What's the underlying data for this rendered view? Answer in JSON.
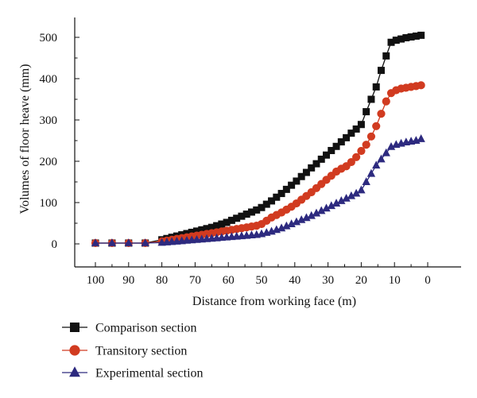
{
  "chart_data": {
    "type": "line",
    "title": "",
    "xlabel": "Distance from working face (m)",
    "ylabel": "Volumes of floor heave (mm)",
    "xlim": [
      100,
      0
    ],
    "ylim": [
      0,
      500
    ],
    "x_reversed": true,
    "xticks": [
      "100",
      "90",
      "80",
      "70",
      "60",
      "50",
      "40",
      "30",
      "20",
      "10",
      "0"
    ],
    "yticks": [
      "0",
      "100",
      "200",
      "300",
      "400",
      "500"
    ],
    "grid": false,
    "legend_position": "bottom",
    "series": [
      {
        "name": "Comparison section",
        "color": "#111111",
        "marker": "square",
        "x": [
          100,
          95,
          90,
          85,
          80,
          78.5,
          77,
          75.5,
          74,
          72.5,
          71,
          69.5,
          68,
          66.5,
          65,
          63.5,
          62,
          60.5,
          59,
          57.5,
          56,
          54.5,
          53,
          51.5,
          50,
          48.5,
          47,
          45.5,
          44,
          42.5,
          41,
          39.5,
          38,
          36.5,
          35,
          33.5,
          32,
          30.5,
          29,
          27.5,
          26,
          24.5,
          23,
          21.5,
          20,
          18.5,
          17,
          15.5,
          14,
          12.5,
          11,
          9.5,
          8,
          6.5,
          5,
          3.5,
          2
        ],
        "y": [
          2,
          2,
          2,
          2,
          10,
          13,
          16,
          19,
          22,
          25,
          28,
          31,
          34,
          37,
          40,
          44,
          48,
          52,
          57,
          62,
          67,
          72,
          77,
          82,
          88,
          96,
          104,
          113,
          122,
          132,
          142,
          152,
          163,
          173,
          184,
          194,
          205,
          215,
          226,
          236,
          247,
          257,
          268,
          278,
          289,
          320,
          350,
          380,
          420,
          455,
          488,
          493,
          496,
          499,
          501,
          503,
          505
        ]
      },
      {
        "name": "Transitory section",
        "color": "#d13b20",
        "marker": "circle",
        "x": [
          100,
          95,
          90,
          85,
          80,
          78.5,
          77,
          75.5,
          74,
          72.5,
          71,
          69.5,
          68,
          66.5,
          65,
          63.5,
          62,
          60.5,
          59,
          57.5,
          56,
          54.5,
          53,
          51.5,
          50,
          48.5,
          47,
          45.5,
          44,
          42.5,
          41,
          39.5,
          38,
          36.5,
          35,
          33.5,
          32,
          30.5,
          29,
          27.5,
          26,
          24.5,
          23,
          21.5,
          20,
          18.5,
          17,
          15.5,
          14,
          12.5,
          11,
          9.5,
          8,
          6.5,
          5,
          3.5,
          2
        ],
        "y": [
          2,
          2,
          2,
          2,
          6,
          8,
          10,
          12,
          14,
          16,
          18,
          20,
          22,
          24,
          26,
          28,
          30,
          32,
          34,
          36,
          38,
          40,
          42,
          44,
          48,
          56,
          64,
          70,
          76,
          83,
          90,
          98,
          107,
          116,
          125,
          135,
          145,
          155,
          165,
          175,
          182,
          188,
          198,
          210,
          225,
          240,
          260,
          285,
          315,
          345,
          365,
          372,
          376,
          378,
          380,
          382,
          384
        ]
      },
      {
        "name": "Experimental section",
        "color": "#2d2a7f",
        "marker": "triangle",
        "x": [
          100,
          95,
          90,
          85,
          80,
          78.5,
          77,
          75.5,
          74,
          72.5,
          71,
          69.5,
          68,
          66.5,
          65,
          63.5,
          62,
          60.5,
          59,
          57.5,
          56,
          54.5,
          53,
          51.5,
          50,
          48.5,
          47,
          45.5,
          44,
          42.5,
          41,
          39.5,
          38,
          36.5,
          35,
          33.5,
          32,
          30.5,
          29,
          27.5,
          26,
          24.5,
          23,
          21.5,
          20,
          18.5,
          17,
          15.5,
          14,
          12.5,
          11,
          9.5,
          8,
          6.5,
          5,
          3.5,
          2
        ],
        "y": [
          2,
          2,
          2,
          2,
          3,
          4,
          5,
          6,
          7,
          8,
          9,
          10,
          11,
          12,
          13,
          14,
          15,
          16,
          17,
          18,
          19,
          20,
          21,
          22,
          24,
          27,
          30,
          34,
          38,
          43,
          48,
          53,
          58,
          63,
          68,
          74,
          80,
          86,
          92,
          98,
          104,
          110,
          116,
          122,
          130,
          150,
          170,
          190,
          205,
          220,
          235,
          240,
          243,
          246,
          248,
          250,
          254
        ]
      }
    ]
  }
}
